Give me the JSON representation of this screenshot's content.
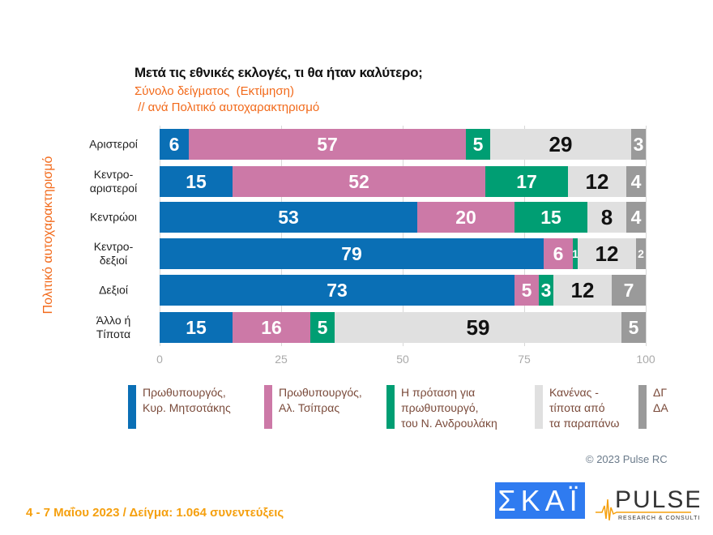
{
  "title": "Μετά τις εθνικές εκλογές, τι θα ήταν καλύτερο;",
  "subtitle1": "Σύνολο δείγματος  (Εκτίμηση)",
  "subtitle2": " // ανά Πολιτικό αυτοχαρακτηρισμό",
  "chart_data": {
    "type": "bar",
    "orientation": "horizontal-stacked",
    "ylabel": "Πολιτικό αυτοχαρακτηρισμό",
    "xlim": [
      0,
      100
    ],
    "xticks": [
      "0",
      "25",
      "50",
      "75",
      "100"
    ],
    "grid": true,
    "legend_placement": "bottom",
    "categories": [
      "Αριστεροί",
      "Κεντρο-\nαριστεροί",
      "Κεντρώοι",
      "Κεντρο-\nδεξιοί",
      "Δεξιοί",
      "Άλλο ή\nΤίποτα"
    ],
    "series": [
      {
        "name": "Πρωθυπουργός,\nΚυρ. Μητσοτάκης",
        "color": "#0a6fb5",
        "values": [
          6,
          15,
          53,
          79,
          73,
          15
        ]
      },
      {
        "name": "Πρωθυπουργός,\nΑλ. Τσίπρας",
        "color": "#cc79a7",
        "values": [
          57,
          52,
          20,
          6,
          5,
          16
        ]
      },
      {
        "name": "Η πρόταση για\nπρωθυπουργό,\nτου Ν. Ανδρουλάκη",
        "color": "#009e73",
        "values": [
          5,
          17,
          15,
          1,
          3,
          5
        ]
      },
      {
        "name": "Κανένας -\nτίποτα από\nτα παραπάνω",
        "color": "#e0e0e0",
        "values": [
          29,
          12,
          8,
          12,
          12,
          59
        ]
      },
      {
        "name": "ΔΓ\nΔΑ",
        "color": "#9a9a9a",
        "values": [
          3,
          4,
          4,
          2,
          7,
          5
        ]
      }
    ]
  },
  "copyright": "© 2023 Pulse RC",
  "footer": "4 - 7  Μαΐου  2023  /  Δείγμα:  1.064 συνεντεύξεις",
  "logos": {
    "skai": "ΣΚΑΪ",
    "pulse": "PULSE",
    "pulse_sub": "RESEARCH & CONSULTING"
  }
}
